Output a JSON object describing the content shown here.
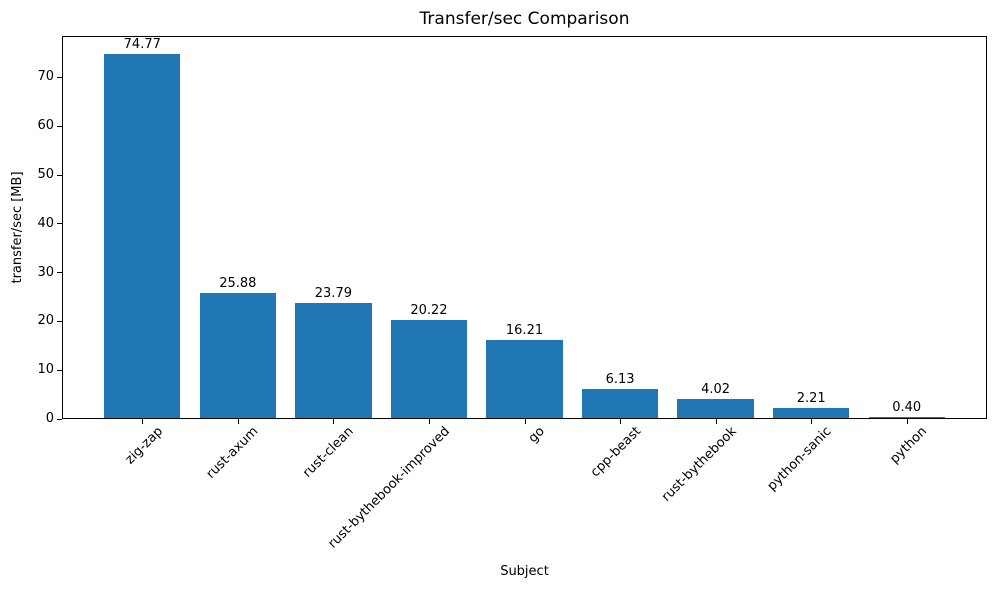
{
  "chart_data": {
    "type": "bar",
    "title": "Transfer/sec Comparison",
    "xlabel": "Subject",
    "ylabel": "transfer/sec [MB]",
    "categories": [
      "zig-zap",
      "rust-axum",
      "rust-clean",
      "rust-bythebook-improved",
      "go",
      "cpp-beast",
      "rust-bythebook",
      "python-sanic",
      "python"
    ],
    "values": [
      74.77,
      25.88,
      23.79,
      20.22,
      16.21,
      6.13,
      4.02,
      2.21,
      0.4
    ],
    "value_labels": [
      "74.77",
      "25.88",
      "23.79",
      "20.22",
      "16.21",
      "6.13",
      "4.02",
      "2.21",
      "0.40"
    ],
    "yticks": [
      0,
      10,
      20,
      30,
      40,
      50,
      60,
      70
    ],
    "ylim": [
      0,
      78.5
    ],
    "bar_width_fraction": 0.8,
    "bar_color": "#1f77b4",
    "text_color": "#000000",
    "background_color": "#ffffff",
    "grid": false,
    "legend": null
  }
}
